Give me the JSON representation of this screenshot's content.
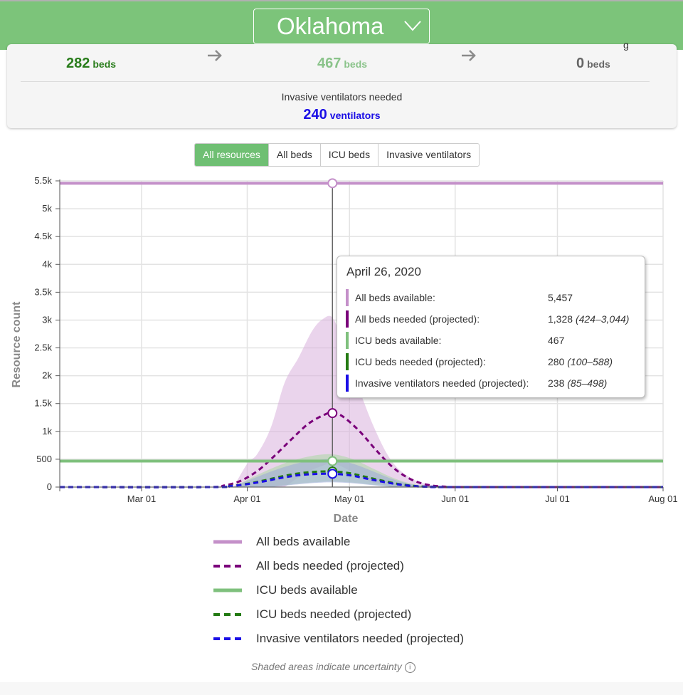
{
  "header": {
    "state": "Oklahoma",
    "dropdown_icon": "chevron-down-icon",
    "background": "#7cc47a"
  },
  "summary": {
    "stats": [
      {
        "value": "282",
        "unit": "beds",
        "color": "#2a7d1c"
      },
      {
        "value": "467",
        "unit": "beds",
        "color": "#8ac38a"
      },
      {
        "value": "0",
        "unit": "beds",
        "color": "#666666"
      }
    ],
    "partial_label_fragment": "g",
    "ventilators": {
      "label": "Invasive ventilators needed",
      "value": "240",
      "unit": "ventilators",
      "color": "#1a0ee6"
    }
  },
  "tabs": [
    {
      "label": "All resources",
      "active": true
    },
    {
      "label": "All beds",
      "active": false
    },
    {
      "label": "ICU beds",
      "active": false
    },
    {
      "label": "Invasive ventilators",
      "active": false
    }
  ],
  "tooltip": {
    "title": "April 26, 2020",
    "rows": [
      {
        "label": "All beds available:",
        "value": "5,457",
        "range": "",
        "color": "#c490c9"
      },
      {
        "label": "All beds needed (projected):",
        "value": "1,328",
        "range": "(424–3,044)",
        "color": "#7a007a"
      },
      {
        "label": "ICU beds available:",
        "value": "467",
        "range": "",
        "color": "#7fc07d"
      },
      {
        "label": "ICU beds needed (projected):",
        "value": "280",
        "range": "(100–588)",
        "color": "#237a12"
      },
      {
        "label": "Invasive ventilators needed (projected):",
        "value": "238",
        "range": "(85–498)",
        "color": "#1a0ee6"
      }
    ]
  },
  "chart_data": {
    "type": "line",
    "xlabel": "Date",
    "ylabel": "Resource count",
    "x_range": [
      "2020-02-06",
      "2020-08-01"
    ],
    "x_ticks": [
      {
        "date": "2020-03-01",
        "label": "Mar 01"
      },
      {
        "date": "2020-04-01",
        "label": "Apr 01"
      },
      {
        "date": "2020-05-01",
        "label": "May 01"
      },
      {
        "date": "2020-06-01",
        "label": "Jun 01"
      },
      {
        "date": "2020-07-01",
        "label": "Jul 01"
      },
      {
        "date": "2020-08-01",
        "label": "Aug 01"
      }
    ],
    "ylim": [
      0,
      5500
    ],
    "y_ticks": [
      {
        "value": 0,
        "label": "0"
      },
      {
        "value": 500,
        "label": "500"
      },
      {
        "value": 1000,
        "label": "1k"
      },
      {
        "value": 1500,
        "label": "1.5k"
      },
      {
        "value": 2000,
        "label": "2k"
      },
      {
        "value": 2500,
        "label": "2.5k"
      },
      {
        "value": 3000,
        "label": "3k"
      },
      {
        "value": 3500,
        "label": "3.5k"
      },
      {
        "value": 4000,
        "label": "4k"
      },
      {
        "value": 4500,
        "label": "4.5k"
      },
      {
        "value": 5000,
        "label": "5k"
      },
      {
        "value": 5500,
        "label": "5.5k"
      }
    ],
    "grid": true,
    "cursor_date": "2020-04-26",
    "series": [
      {
        "name": "All beds available",
        "style": "solid",
        "color": "#c490c9",
        "constant": 5457
      },
      {
        "name": "All beds needed (projected)",
        "style": "dashed",
        "color": "#7a007a",
        "band_color": "#d9b0dc",
        "points": [
          [
            "2020-03-20",
            0
          ],
          [
            "2020-03-25",
            25
          ],
          [
            "2020-03-30",
            110
          ],
          [
            "2020-04-04",
            290
          ],
          [
            "2020-04-09",
            560
          ],
          [
            "2020-04-14",
            860
          ],
          [
            "2020-04-19",
            1140
          ],
          [
            "2020-04-24",
            1310
          ],
          [
            "2020-04-26",
            1328
          ],
          [
            "2020-04-29",
            1270
          ],
          [
            "2020-05-04",
            1000
          ],
          [
            "2020-05-09",
            650
          ],
          [
            "2020-05-14",
            340
          ],
          [
            "2020-05-19",
            140
          ],
          [
            "2020-05-24",
            40
          ],
          [
            "2020-05-29",
            8
          ],
          [
            "2020-06-03",
            0
          ]
        ],
        "upper": [
          [
            "2020-03-28",
            0
          ],
          [
            "2020-04-01",
            420
          ],
          [
            "2020-04-04",
            600
          ],
          [
            "2020-04-08",
            1080
          ],
          [
            "2020-04-12",
            1880
          ],
          [
            "2020-04-16",
            2320
          ],
          [
            "2020-04-20",
            2800
          ],
          [
            "2020-04-23",
            3010
          ],
          [
            "2020-04-26",
            3044
          ],
          [
            "2020-04-29",
            2600
          ],
          [
            "2020-05-03",
            1900
          ],
          [
            "2020-05-08",
            1100
          ],
          [
            "2020-05-13",
            500
          ],
          [
            "2020-05-18",
            200
          ],
          [
            "2020-05-24",
            50
          ],
          [
            "2020-06-03",
            0
          ]
        ],
        "lower": [
          [
            "2020-04-12",
            0
          ],
          [
            "2020-04-18",
            250
          ],
          [
            "2020-04-23",
            380
          ],
          [
            "2020-04-26",
            424
          ],
          [
            "2020-04-30",
            330
          ],
          [
            "2020-05-06",
            120
          ],
          [
            "2020-05-12",
            30
          ],
          [
            "2020-05-18",
            0
          ]
        ]
      },
      {
        "name": "ICU beds available",
        "style": "solid",
        "color": "#7fc07d",
        "constant": 467
      },
      {
        "name": "ICU beds needed (projected)",
        "style": "dashed",
        "color": "#237a12",
        "band_color": "#a9d7a4",
        "points": [
          [
            "2020-03-22",
            0
          ],
          [
            "2020-03-27",
            20
          ],
          [
            "2020-04-01",
            60
          ],
          [
            "2020-04-06",
            120
          ],
          [
            "2020-04-11",
            190
          ],
          [
            "2020-04-16",
            245
          ],
          [
            "2020-04-21",
            275
          ],
          [
            "2020-04-26",
            280
          ],
          [
            "2020-05-01",
            250
          ],
          [
            "2020-05-06",
            180
          ],
          [
            "2020-05-11",
            110
          ],
          [
            "2020-05-16",
            50
          ],
          [
            "2020-05-21",
            15
          ],
          [
            "2020-05-26",
            3
          ],
          [
            "2020-05-31",
            0
          ]
        ],
        "upper": [
          [
            "2020-03-28",
            0
          ],
          [
            "2020-04-02",
            160
          ],
          [
            "2020-04-08",
            330
          ],
          [
            "2020-04-14",
            470
          ],
          [
            "2020-04-20",
            560
          ],
          [
            "2020-04-26",
            588
          ],
          [
            "2020-05-02",
            500
          ],
          [
            "2020-05-08",
            330
          ],
          [
            "2020-05-14",
            160
          ],
          [
            "2020-05-20",
            50
          ],
          [
            "2020-05-27",
            0
          ]
        ],
        "lower": [
          [
            "2020-04-08",
            0
          ],
          [
            "2020-04-16",
            60
          ],
          [
            "2020-04-22",
            90
          ],
          [
            "2020-04-26",
            100
          ],
          [
            "2020-05-02",
            80
          ],
          [
            "2020-05-08",
            40
          ],
          [
            "2020-05-14",
            0
          ]
        ]
      },
      {
        "name": "Invasive ventilators needed (projected)",
        "style": "dashed",
        "color": "#1a0ee6",
        "band_color": "#9aaad8",
        "points": [
          [
            "2020-03-22",
            0
          ],
          [
            "2020-03-27",
            17
          ],
          [
            "2020-04-01",
            52
          ],
          [
            "2020-04-06",
            104
          ],
          [
            "2020-04-11",
            165
          ],
          [
            "2020-04-16",
            212
          ],
          [
            "2020-04-21",
            235
          ],
          [
            "2020-04-26",
            238
          ],
          [
            "2020-05-01",
            212
          ],
          [
            "2020-05-06",
            152
          ],
          [
            "2020-05-11",
            92
          ],
          [
            "2020-05-16",
            42
          ],
          [
            "2020-05-21",
            12
          ],
          [
            "2020-05-26",
            2
          ],
          [
            "2020-05-31",
            0
          ]
        ],
        "upper": [
          [
            "2020-03-28",
            0
          ],
          [
            "2020-04-02",
            135
          ],
          [
            "2020-04-08",
            280
          ],
          [
            "2020-04-14",
            400
          ],
          [
            "2020-04-20",
            475
          ],
          [
            "2020-04-26",
            498
          ],
          [
            "2020-05-02",
            420
          ],
          [
            "2020-05-08",
            280
          ],
          [
            "2020-05-14",
            135
          ],
          [
            "2020-05-20",
            40
          ],
          [
            "2020-05-27",
            0
          ]
        ],
        "lower": [
          [
            "2020-04-08",
            0
          ],
          [
            "2020-04-16",
            50
          ],
          [
            "2020-04-22",
            78
          ],
          [
            "2020-04-26",
            85
          ],
          [
            "2020-05-02",
            68
          ],
          [
            "2020-05-08",
            32
          ],
          [
            "2020-05-14",
            0
          ]
        ]
      }
    ]
  },
  "legend": [
    {
      "label": "All beds available",
      "color": "#c490c9",
      "style": "solid"
    },
    {
      "label": "All beds needed (projected)",
      "color": "#7a007a",
      "style": "dashed"
    },
    {
      "label": "ICU beds available",
      "color": "#7fc07d",
      "style": "solid"
    },
    {
      "label": "ICU beds needed (projected)",
      "color": "#237a12",
      "style": "dashed"
    },
    {
      "label": "Invasive ventilators needed (projected)",
      "color": "#1a0ee6",
      "style": "dashed"
    }
  ],
  "footnote": {
    "text": "Shaded areas indicate uncertainty",
    "icon": "info-icon"
  }
}
